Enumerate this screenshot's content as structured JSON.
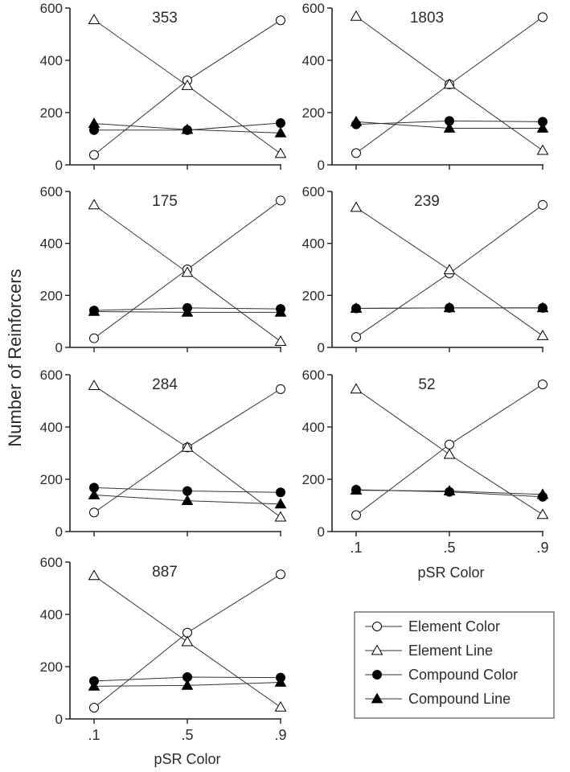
{
  "figure": {
    "ylabel": "Number of Reinforcers",
    "xlabel": "pSR Color"
  },
  "legend": {
    "items": [
      {
        "label": "Element Color",
        "marker": "circle-open"
      },
      {
        "label": "Element Line",
        "marker": "triangle-open"
      },
      {
        "label": "Compound Color",
        "marker": "circle-filled"
      },
      {
        "label": "Compound Line",
        "marker": "triangle-filled"
      }
    ]
  },
  "chart_data": [
    {
      "type": "line",
      "title": "353",
      "x": [
        ".1",
        ".5",
        ".9"
      ],
      "ylim": [
        0,
        600
      ],
      "yticks": [
        "0",
        "200",
        "400",
        "600"
      ],
      "series": [
        {
          "name": "Element Color",
          "values": [
            38,
            323,
            553
          ]
        },
        {
          "name": "Element Line",
          "values": [
            555,
            303,
            43
          ]
        },
        {
          "name": "Compound Color",
          "values": [
            133,
            133,
            160
          ]
        },
        {
          "name": "Compound Line",
          "values": [
            158,
            135,
            122
          ]
        }
      ]
    },
    {
      "type": "line",
      "title": "1803",
      "x": [
        ".1",
        ".5",
        ".9"
      ],
      "ylim": [
        0,
        600
      ],
      "yticks": [
        "0",
        "200",
        "400",
        "600"
      ],
      "series": [
        {
          "name": "Element Color",
          "values": [
            45,
            308,
            565
          ]
        },
        {
          "name": "Element Line",
          "values": [
            568,
            308,
            55
          ]
        },
        {
          "name": "Compound Color",
          "values": [
            155,
            168,
            165
          ]
        },
        {
          "name": "Compound Line",
          "values": [
            165,
            140,
            140
          ]
        }
      ]
    },
    {
      "type": "line",
      "title": "175",
      "x": [
        ".1",
        ".5",
        ".9"
      ],
      "ylim": [
        0,
        600
      ],
      "yticks": [
        "0",
        "200",
        "400",
        "600"
      ],
      "series": [
        {
          "name": "Element Color",
          "values": [
            35,
            300,
            565
          ]
        },
        {
          "name": "Element Line",
          "values": [
            548,
            288,
            23
          ]
        },
        {
          "name": "Compound Color",
          "values": [
            142,
            152,
            148
          ]
        },
        {
          "name": "Compound Line",
          "values": [
            138,
            135,
            135
          ]
        }
      ]
    },
    {
      "type": "line",
      "title": "239",
      "x": [
        ".1",
        ".5",
        ".9"
      ],
      "ylim": [
        0,
        600
      ],
      "yticks": [
        "0",
        "200",
        "400",
        "600"
      ],
      "series": [
        {
          "name": "Element Color",
          "values": [
            40,
            285,
            548
          ]
        },
        {
          "name": "Element Line",
          "values": [
            538,
            298,
            45
          ]
        },
        {
          "name": "Compound Color",
          "values": [
            150,
            152,
            152
          ]
        },
        {
          "name": "Compound Line",
          "values": [
            150,
            152,
            152
          ]
        }
      ]
    },
    {
      "type": "line",
      "title": "284",
      "x": [
        ".1",
        ".5",
        ".9"
      ],
      "ylim": [
        0,
        600
      ],
      "yticks": [
        "0",
        "200",
        "400",
        "600"
      ],
      "series": [
        {
          "name": "Element Color",
          "values": [
            73,
            322,
            545
          ]
        },
        {
          "name": "Element Line",
          "values": [
            558,
            322,
            55
          ]
        },
        {
          "name": "Compound Color",
          "values": [
            168,
            155,
            150
          ]
        },
        {
          "name": "Compound Line",
          "values": [
            140,
            118,
            105
          ]
        }
      ]
    },
    {
      "type": "line",
      "title": "52",
      "x": [
        ".1",
        ".5",
        ".9"
      ],
      "ylim": [
        0,
        600
      ],
      "yticks": [
        "0",
        "200",
        "400",
        "600"
      ],
      "series": [
        {
          "name": "Element Color",
          "values": [
            63,
            333,
            563
          ]
        },
        {
          "name": "Element Line",
          "values": [
            545,
            295,
            65
          ]
        },
        {
          "name": "Compound Color",
          "values": [
            160,
            152,
            133
          ]
        },
        {
          "name": "Compound Line",
          "values": [
            158,
            155,
            142
          ]
        }
      ]
    },
    {
      "type": "line",
      "title": "887",
      "x": [
        ".1",
        ".5",
        ".9"
      ],
      "ylim": [
        0,
        600
      ],
      "yticks": [
        "0",
        "200",
        "400",
        "600"
      ],
      "series": [
        {
          "name": "Element Color",
          "values": [
            43,
            330,
            553
          ]
        },
        {
          "name": "Element Line",
          "values": [
            548,
            295,
            45
          ]
        },
        {
          "name": "Compound Color",
          "values": [
            145,
            160,
            158
          ]
        },
        {
          "name": "Compound Line",
          "values": [
            125,
            128,
            140
          ]
        }
      ]
    }
  ]
}
